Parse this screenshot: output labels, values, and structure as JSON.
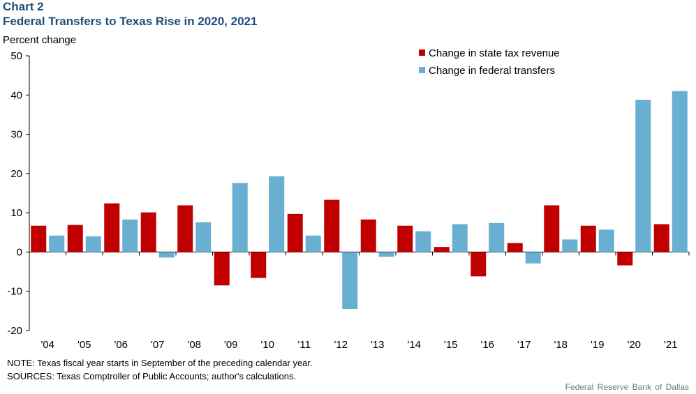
{
  "header": {
    "chart_label": "Chart 2",
    "title": "Federal Transfers to Texas Rise in 2020, 2021"
  },
  "footer": {
    "note": "NOTE: Texas fiscal year starts in September of the preceding calendar year.",
    "sources": "SOURCES: Texas Comptroller of Public Accounts; author's calculations.",
    "credit": "Federal Reserve Bank of Dallas"
  },
  "colors": {
    "state": "#c00000",
    "federal": "#68afd1"
  },
  "chart_data": {
    "type": "bar",
    "title": "Federal Transfers to Texas Rise in 2020, 2021",
    "ylabel": "Percent change",
    "xlabel": "",
    "ylim": [
      -20,
      50
    ],
    "yticks": [
      50,
      40,
      30,
      20,
      10,
      0,
      -10,
      -20
    ],
    "grid": false,
    "legend_position": "top-right",
    "categories": [
      "'04",
      "'05",
      "'06",
      "'07",
      "'08",
      "'09",
      "'10",
      "'11",
      "'12",
      "'13",
      "'14",
      "'15",
      "'16",
      "'17",
      "'18",
      "'19",
      "'20",
      "'21"
    ],
    "series": [
      {
        "name": "Change in state tax revenue",
        "color": "#c00000",
        "values": [
          6.7,
          6.9,
          12.4,
          10.1,
          11.9,
          -8.5,
          -6.6,
          9.7,
          13.3,
          8.3,
          6.7,
          1.3,
          -6.2,
          2.3,
          11.9,
          6.7,
          -3.4,
          7.1
        ]
      },
      {
        "name": "Change in federal transfers",
        "color": "#68afd1",
        "values": [
          4.2,
          4.0,
          8.3,
          -1.4,
          7.6,
          17.6,
          19.3,
          4.2,
          -14.5,
          -1.2,
          5.3,
          7.1,
          7.4,
          -2.9,
          3.2,
          5.7,
          38.8,
          41.0
        ]
      }
    ]
  }
}
